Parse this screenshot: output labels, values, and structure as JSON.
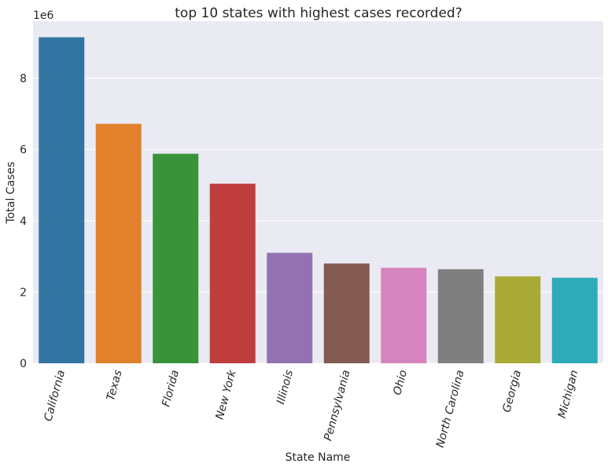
{
  "chart_data": {
    "type": "bar",
    "title": "top 10 states with highest cases recorded?",
    "xlabel": "State Name",
    "ylabel": "Total Cases",
    "offset_label": "1e6",
    "categories": [
      "California",
      "Texas",
      "Florida",
      "New York",
      "Illinois",
      "Pennsylvania",
      "Ohio",
      "North Carolina",
      "Georgia",
      "Michigan"
    ],
    "values": [
      9150000,
      6720000,
      5880000,
      5040000,
      3100000,
      2800000,
      2680000,
      2640000,
      2440000,
      2400000
    ],
    "colors": [
      "#3274a1",
      "#e1812c",
      "#3a923a",
      "#c03d3e",
      "#9372b2",
      "#845b53",
      "#d684bd",
      "#7f7f7f",
      "#a9aa35",
      "#2eabb8"
    ],
    "ylim": [
      0,
      9600000
    ],
    "yticks": [
      0,
      2000000,
      4000000,
      6000000,
      8000000
    ],
    "ytick_labels": [
      "0",
      "2",
      "4",
      "6",
      "8"
    ],
    "grid": true,
    "background": "#eaeaf2",
    "grid_color": "#ffffff"
  }
}
